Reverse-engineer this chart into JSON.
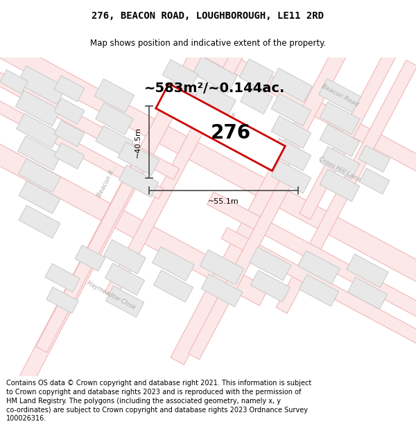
{
  "title": "276, BEACON ROAD, LOUGHBOROUGH, LE11 2RD",
  "subtitle": "Map shows position and indicative extent of the property.",
  "footer": "Contains OS data © Crown copyright and database right 2021. This information is subject\nto Crown copyright and database rights 2023 and is reproduced with the permission of\nHM Land Registry. The polygons (including the associated geometry, namely x, y\nco-ordinates) are subject to Crown copyright and database rights 2023 Ordnance Survey\n100026316.",
  "area_text": "~583m²/~0.144ac.",
  "label_276": "276",
  "dim_width": "~55.1m",
  "dim_height": "~40.5m",
  "map_bg": "#ffffff",
  "road_fill": "#fce8e8",
  "road_stroke": "#f0b8b8",
  "road_stroke_lw": 0.8,
  "block_fc": "#e8e8e8",
  "block_ec": "#c8c8c8",
  "block_lw": 0.7,
  "prop_edge_color": "#cc0000",
  "prop_lw": 2.0,
  "dim_color": "#555555",
  "dim_lw": 1.3,
  "road_label_color": "#aaaaaa",
  "title_fontsize": 10,
  "subtitle_fontsize": 8.5,
  "footer_fontsize": 7.0,
  "area_fontsize": 14,
  "label_fontsize": 20,
  "dim_fontsize": 8
}
